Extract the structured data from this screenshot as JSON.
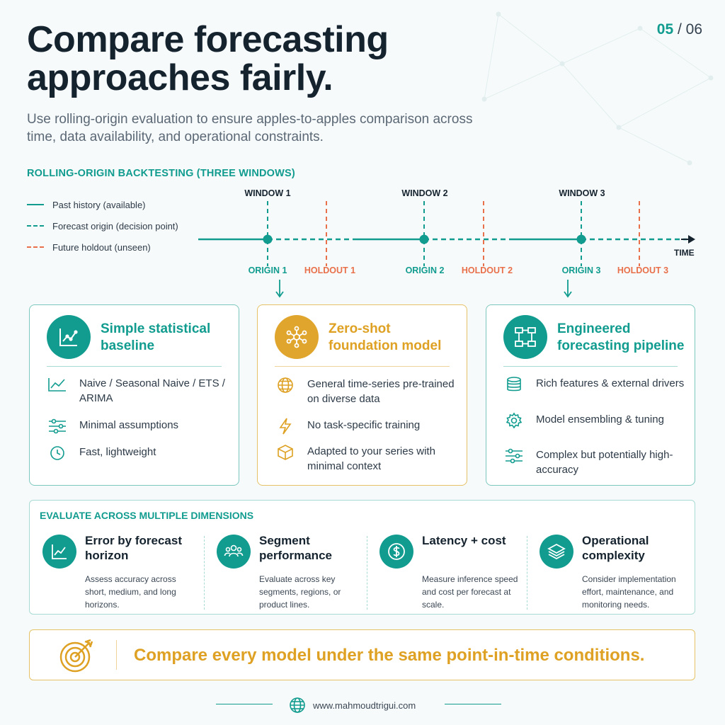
{
  "header": {
    "title": "Compare forecasting approaches fairly.",
    "page_current": "05",
    "page_sep": " / ",
    "page_total": "06",
    "subtitle": "Use rolling-origin evaluation to ensure apples-to-apples comparison across time, data availability, and operational constraints."
  },
  "backtesting": {
    "label": "ROLLING-ORIGIN BACKTESTING (THREE WINDOWS)",
    "legend": [
      {
        "label": "Past history (available)",
        "style": "solid-teal"
      },
      {
        "label": "Forecast origin (decision point)",
        "style": "dashed-teal"
      },
      {
        "label": "Future holdout (unseen)",
        "style": "dashed-orange"
      }
    ],
    "windows": [
      {
        "name": "WINDOW 1",
        "origin": "ORIGIN 1",
        "holdout": "HOLDOUT 1"
      },
      {
        "name": "WINDOW 2",
        "origin": "ORIGIN 2",
        "holdout": "HOLDOUT 2"
      },
      {
        "name": "WINDOW 3",
        "origin": "ORIGIN 3",
        "holdout": "HOLDOUT 3"
      }
    ],
    "axis_label": "TIME"
  },
  "approaches": [
    {
      "title": "Simple statistical baseline",
      "icon": "line-chart-icon",
      "features": [
        {
          "icon": "trend-icon",
          "text": "Naive / Seasonal Naive / ETS / ARIMA"
        },
        {
          "icon": "sliders-icon",
          "text": "Minimal assumptions"
        },
        {
          "icon": "clock-icon",
          "text": "Fast, lightweight"
        }
      ]
    },
    {
      "title": "Zero-shot foundation model",
      "icon": "network-icon",
      "features": [
        {
          "icon": "globe-icon",
          "text": "General time-series pre-trained on diverse data"
        },
        {
          "icon": "lightning-icon",
          "text": "No task-specific training"
        },
        {
          "icon": "cube-icon",
          "text": "Adapted to your series with minimal context"
        }
      ]
    },
    {
      "title": "Engineered forecasting pipeline",
      "icon": "flowchart-icon",
      "features": [
        {
          "icon": "database-icon",
          "text": "Rich features & external drivers"
        },
        {
          "icon": "gear-icon",
          "text": "Model ensembling & tuning"
        },
        {
          "icon": "sliders-icon",
          "text": "Complex but potentially high-accuracy"
        }
      ]
    }
  ],
  "evaluation": {
    "label": "EVALUATE ACROSS MULTIPLE DIMENSIONS",
    "dimensions": [
      {
        "title": "Error by forecast horizon",
        "icon": "line-chart-icon",
        "desc": "Assess accuracy across short, medium, and long horizons."
      },
      {
        "title": "Segment performance",
        "icon": "people-icon",
        "desc": "Evaluate across key segments, regions, or product lines."
      },
      {
        "title": "Latency + cost",
        "icon": "dollar-icon",
        "desc": "Measure inference speed and cost per forecast at scale."
      },
      {
        "title": "Operational complexity",
        "icon": "layers-icon",
        "desc": "Consider implementation effort, maintenance, and monitoring needs."
      }
    ]
  },
  "callout": {
    "text": "Compare every model under the same point-in-time conditions.",
    "icon": "target-icon"
  },
  "footer": {
    "url": "www.mahmoudtrigui.com",
    "icon": "globe-icon"
  },
  "colors": {
    "teal": "#119c8f",
    "orange": "#e8704a",
    "gold": "#dea123",
    "dark": "#15232f"
  }
}
